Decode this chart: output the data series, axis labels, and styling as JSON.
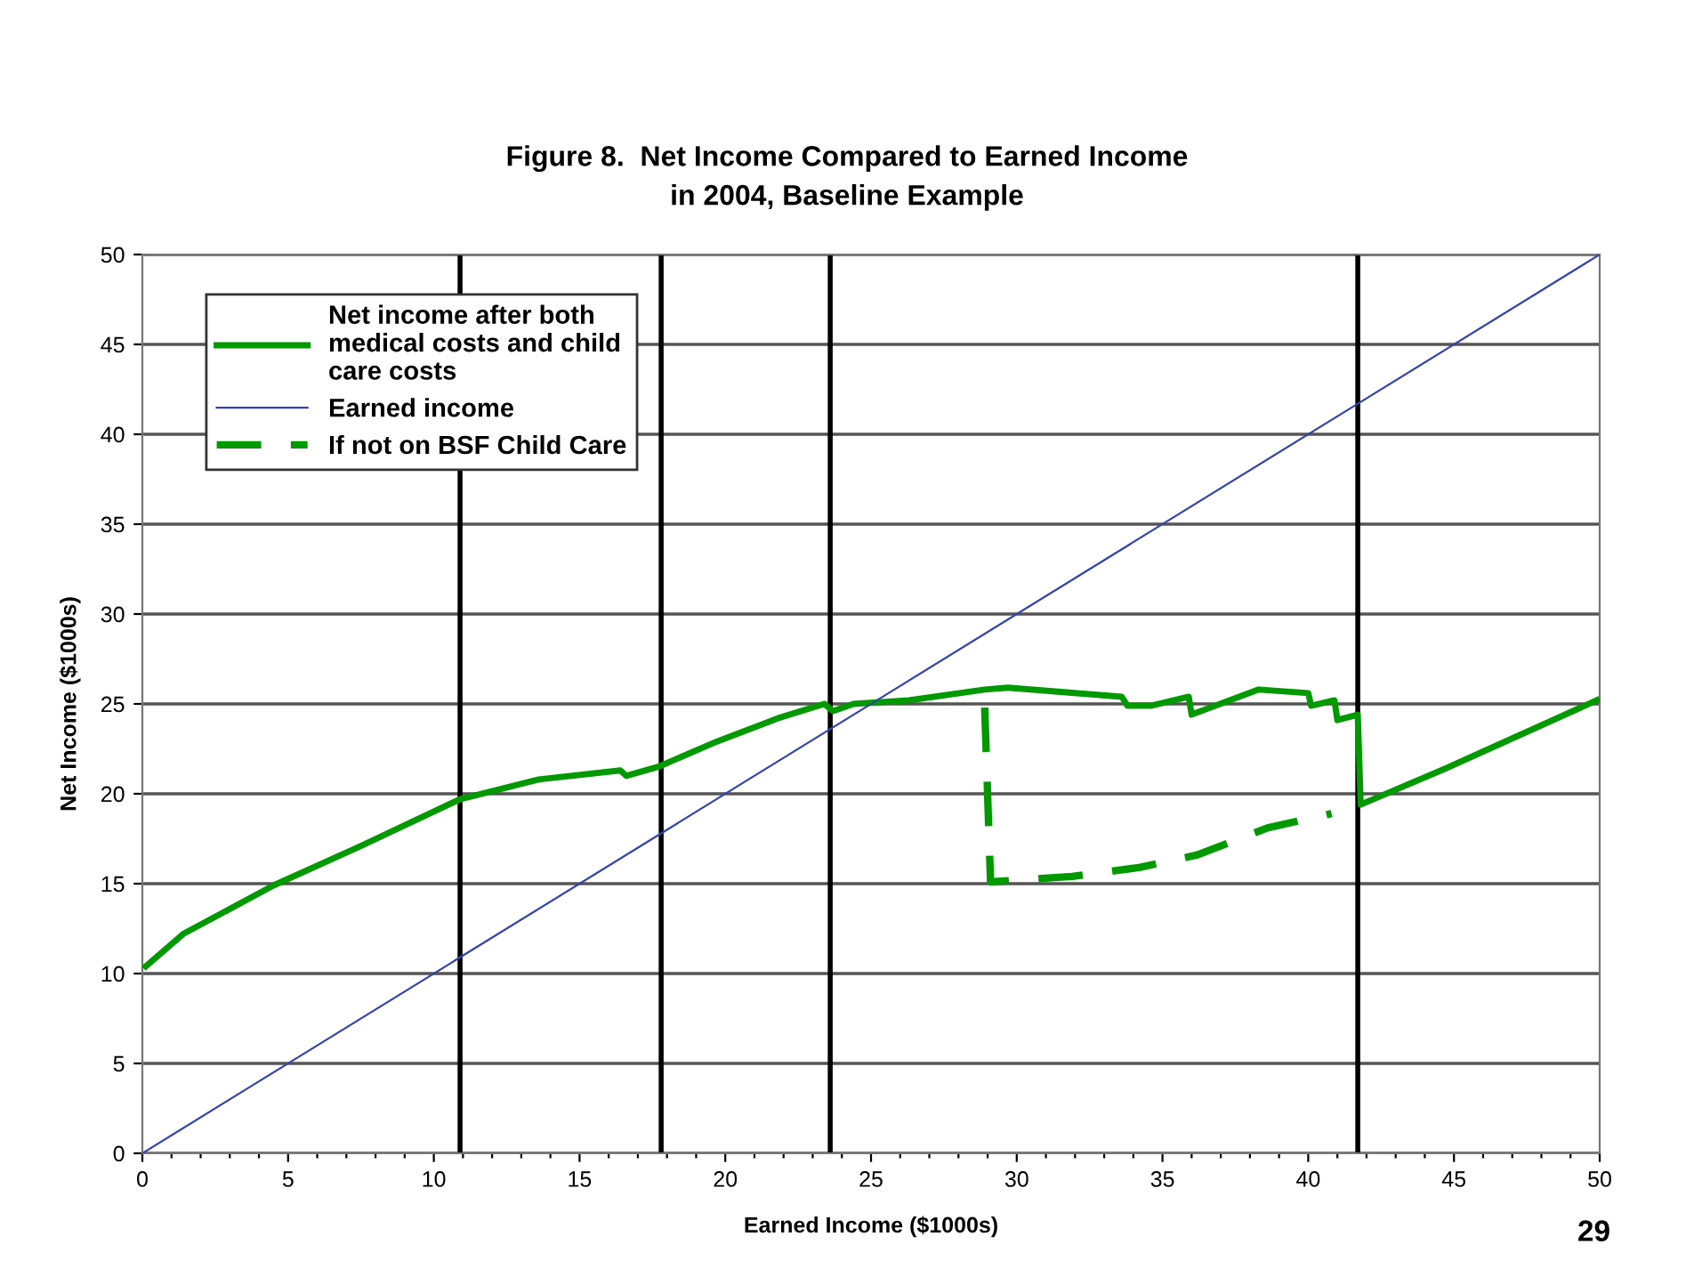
{
  "chart_data": {
    "type": "line",
    "title": "Figure 8.  Net Income Compared to Earned Income\nin 2004, Baseline Example",
    "xlabel": "Earned Income ($1000s)",
    "ylabel": "Net Income ($1000s)",
    "series": [
      {
        "name": "Net income after both\nmedical costs and child\ncare costs",
        "color": "#009900",
        "x": [
          0.12,
          1.4,
          4.5,
          7.5,
          10.9,
          13.6,
          16.4,
          16.6,
          17.7,
          19.7,
          21.8,
          23.4,
          23.7,
          24.4,
          26.3,
          28.9,
          29.7,
          33.6,
          33.8,
          34.6,
          35.9,
          36.0,
          38.3,
          40.0,
          40.1,
          40.9,
          41.0,
          41.7,
          41.8,
          44.7,
          49.9
        ],
        "values": [
          10.4,
          12.2,
          14.9,
          17.1,
          19.7,
          20.8,
          21.3,
          21.0,
          21.5,
          22.9,
          24.2,
          25.0,
          24.6,
          25.0,
          25.2,
          25.8,
          25.9,
          25.4,
          24.9,
          24.9,
          25.4,
          24.4,
          25.8,
          25.6,
          24.9,
          25.2,
          24.1,
          24.4,
          19.4,
          21.4,
          25.2
        ],
        "line_style": "solid"
      },
      {
        "name": "Earned income",
        "color": "#3344aa",
        "x": [
          0,
          50
        ],
        "values": [
          0,
          50
        ],
        "line_style": "solid"
      },
      {
        "name": "If not on BSF Child Care",
        "color": "#009900",
        "x": [
          28.9,
          29.1,
          31.9,
          34.2,
          36.2,
          38.6,
          40.8
        ],
        "values": [
          24.8,
          15.1,
          15.4,
          15.9,
          16.6,
          18.1,
          18.9
        ],
        "line_style": "dashed"
      }
    ],
    "xlim": [
      0,
      50
    ],
    "ylim": [
      0,
      50
    ],
    "xticks": [
      0,
      {
        "value": 1,
        "label": null
      },
      {
        "value": 2,
        "label": null
      },
      {
        "value": 3,
        "label": null
      },
      {
        "value": 4,
        "label": null
      },
      5,
      {
        "value": 6,
        "label": null
      },
      {
        "value": 7,
        "label": null
      },
      {
        "value": 8,
        "label": null
      },
      {
        "value": 9,
        "label": null
      },
      10,
      {
        "value": 11,
        "label": null
      },
      {
        "value": 12,
        "label": null
      },
      {
        "value": 13,
        "label": null
      },
      {
        "value": 14,
        "label": null
      },
      15,
      {
        "value": 16,
        "label": null
      },
      {
        "value": 17,
        "label": null
      },
      {
        "value": 18,
        "label": null
      },
      {
        "value": 19,
        "label": null
      },
      20,
      {
        "value": 21,
        "label": null
      },
      {
        "value": 22,
        "label": null
      },
      {
        "value": 23,
        "label": null
      },
      {
        "value": 24,
        "label": null
      },
      25,
      {
        "value": 26,
        "label": null
      },
      {
        "value": 27,
        "label": null
      },
      {
        "value": 28,
        "label": null
      },
      {
        "value": 29,
        "label": null
      },
      30,
      {
        "value": 31,
        "label": null
      },
      {
        "value": 32,
        "label": null
      },
      {
        "value": 33,
        "label": null
      },
      {
        "value": 34,
        "label": null
      },
      35,
      {
        "value": 36,
        "label": null
      },
      {
        "value": 37,
        "label": null
      },
      {
        "value": 38,
        "label": null
      },
      {
        "value": 39,
        "label": null
      },
      40,
      {
        "value": 41,
        "label": null
      },
      {
        "value": 42,
        "label": null
      },
      {
        "value": 43,
        "label": null
      },
      {
        "value": 44,
        "label": null
      },
      45,
      {
        "value": 46,
        "label": null
      },
      {
        "value": 47,
        "label": null
      },
      {
        "value": 48,
        "label": null
      },
      {
        "value": 49,
        "label": null
      },
      50
    ],
    "yticks": [
      0,
      5,
      10,
      15,
      20,
      25,
      30,
      35,
      40,
      45,
      50
    ],
    "ref_lines": [
      {
        "axis": "x",
        "value": 10.9,
        "color": "#000000"
      },
      {
        "axis": "x",
        "value": 17.8,
        "color": "#000000"
      },
      {
        "axis": "x",
        "value": 23.6,
        "color": "#000000"
      },
      {
        "axis": "x",
        "value": 41.7,
        "color": "#000000"
      }
    ],
    "grid": "y",
    "legend": "top left",
    "marker": "none",
    "annotations": [
      "29"
    ]
  }
}
